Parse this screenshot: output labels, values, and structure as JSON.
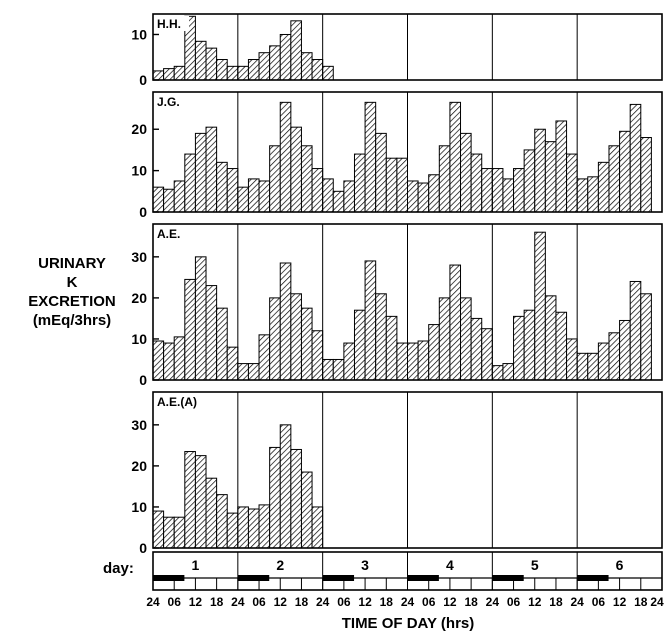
{
  "chart_data": {
    "type": "bar",
    "y_axis_label_lines": [
      "URINARY",
      "K",
      "EXCRETION",
      "(mEq/3hrs)"
    ],
    "x_axis_title": "TIME OF DAY (hrs)",
    "day_row_label": "day:",
    "days": [
      "1",
      "2",
      "3",
      "4",
      "5",
      "6"
    ],
    "hour_tick_labels": [
      "24",
      "06",
      "12",
      "18"
    ],
    "final_hour_tick": "24",
    "panels": [
      {
        "label": "H.H.",
        "yticks": [
          0,
          10
        ],
        "ylim": [
          0,
          14.5
        ],
        "bins_per_day": 8,
        "values": [
          2,
          2.5,
          3,
          14,
          8.5,
          7,
          4.5,
          3,
          3,
          4.5,
          6,
          7.5,
          10,
          13,
          6,
          4.5,
          3
        ]
      },
      {
        "label": "J.G.",
        "yticks": [
          0,
          10,
          20
        ],
        "ylim": [
          0,
          29
        ],
        "bins_per_day": 8,
        "values": [
          6,
          5.5,
          7.5,
          14,
          19,
          20.5,
          12,
          10.5,
          6,
          8,
          7.5,
          16,
          26.5,
          20.5,
          16,
          10.5,
          8,
          5,
          7.5,
          14,
          26.5,
          19,
          13,
          13,
          7.5,
          7,
          9,
          16,
          26.5,
          19,
          14,
          10.5,
          10.5,
          8,
          10.5,
          15,
          20,
          17,
          22,
          14,
          8,
          8.5,
          12,
          16,
          19.5,
          26,
          18
        ]
      },
      {
        "label": "A.E.",
        "yticks": [
          0,
          10,
          20,
          30
        ],
        "ylim": [
          0,
          38
        ],
        "bins_per_day": 8,
        "values": [
          9.5,
          9,
          10.5,
          24.5,
          30,
          23,
          17.5,
          8,
          4,
          4,
          11,
          20,
          28.5,
          21,
          17.5,
          12,
          5,
          5,
          9,
          17,
          29,
          21,
          15.5,
          9,
          9,
          9.5,
          13.5,
          20,
          28,
          20,
          15,
          12.5,
          3.5,
          4,
          15.5,
          17,
          36,
          20.5,
          16.5,
          10,
          6.5,
          6.5,
          9,
          11.5,
          14.5,
          24,
          21
        ]
      },
      {
        "label": "A.E.(A)",
        "yticks": [
          0,
          10,
          20,
          30
        ],
        "ylim": [
          0,
          38
        ],
        "bins_per_day": 8,
        "values": [
          9,
          7.5,
          7.5,
          23.5,
          22.5,
          17,
          13,
          8.5,
          10,
          9.5,
          10.5,
          24.5,
          30,
          24,
          18.5,
          10
        ]
      }
    ]
  }
}
